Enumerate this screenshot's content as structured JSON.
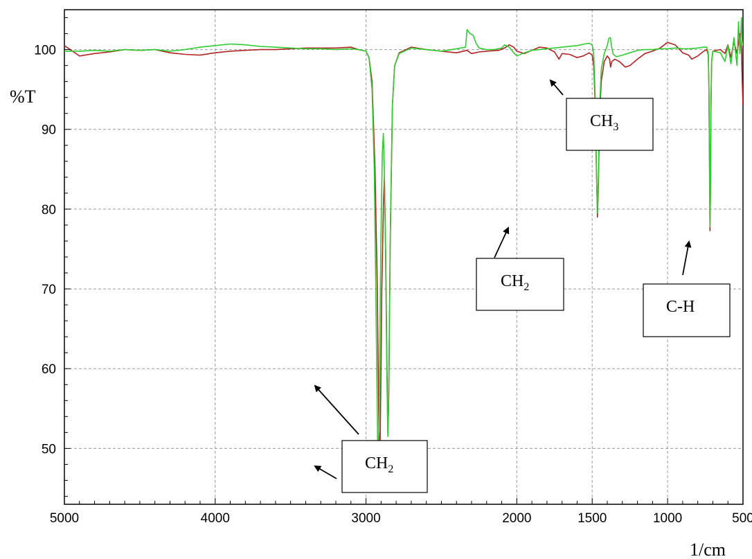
{
  "chart_data": {
    "type": "line",
    "title": "",
    "xlabel": "1/cm",
    "ylabel": "%T",
    "xlim": [
      5000,
      500
    ],
    "ylim": [
      43,
      105
    ],
    "x_reversed": true,
    "grid": true,
    "x_ticks": [
      {
        "value": 5000,
        "label": "5000"
      },
      {
        "value": 4000,
        "label": "4000"
      },
      {
        "value": 3000,
        "label": "3000"
      },
      {
        "value": 2000,
        "label": "2000"
      },
      {
        "value": 1500,
        "label": "1500"
      },
      {
        "value": 1000,
        "label": "1000"
      },
      {
        "value": 500,
        "label": "500"
      }
    ],
    "y_ticks": [
      {
        "value": 100,
        "label": "100"
      },
      {
        "value": 90,
        "label": "90"
      },
      {
        "value": 80,
        "label": "80"
      },
      {
        "value": 70,
        "label": "70"
      },
      {
        "value": 60,
        "label": "60"
      },
      {
        "value": 50,
        "label": "50"
      }
    ],
    "series": [
      {
        "color": "#b22222",
        "points": [
          [
            5000,
            100.5
          ],
          [
            4900,
            99.2
          ],
          [
            4800,
            99.5
          ],
          [
            4700,
            99.7
          ],
          [
            4600,
            100.0
          ],
          [
            4500,
            99.9
          ],
          [
            4400,
            100.0
          ],
          [
            4300,
            99.6
          ],
          [
            4200,
            99.4
          ],
          [
            4100,
            99.3
          ],
          [
            4000,
            99.6
          ],
          [
            3900,
            99.8
          ],
          [
            3800,
            99.9
          ],
          [
            3700,
            100.0
          ],
          [
            3600,
            100.0
          ],
          [
            3500,
            100.1
          ],
          [
            3400,
            100.2
          ],
          [
            3300,
            100.2
          ],
          [
            3200,
            100.2
          ],
          [
            3100,
            100.3
          ],
          [
            3050,
            100.0
          ],
          [
            3000,
            99.8
          ],
          [
            2980,
            99.0
          ],
          [
            2960,
            96.0
          ],
          [
            2940,
            85.0
          ],
          [
            2925,
            70.0
          ],
          [
            2915,
            53.0
          ],
          [
            2910,
            48.0
          ],
          [
            2905,
            52.0
          ],
          [
            2895,
            70.0
          ],
          [
            2885,
            80.0
          ],
          [
            2878,
            84.0
          ],
          [
            2870,
            75.0
          ],
          [
            2862,
            62.0
          ],
          [
            2855,
            52.0
          ],
          [
            2850,
            55.0
          ],
          [
            2840,
            75.0
          ],
          [
            2825,
            93.0
          ],
          [
            2810,
            98.0
          ],
          [
            2780,
            99.6
          ],
          [
            2700,
            100.3
          ],
          [
            2600,
            100.0
          ],
          [
            2500,
            99.8
          ],
          [
            2400,
            99.6
          ],
          [
            2330,
            99.9
          ],
          [
            2300,
            99.5
          ],
          [
            2250,
            99.7
          ],
          [
            2200,
            99.8
          ],
          [
            2120,
            99.9
          ],
          [
            2080,
            100.2
          ],
          [
            2050,
            100.6
          ],
          [
            2020,
            100.3
          ],
          [
            2000,
            99.8
          ],
          [
            1950,
            99.5
          ],
          [
            1900,
            99.9
          ],
          [
            1850,
            100.3
          ],
          [
            1800,
            100.2
          ],
          [
            1750,
            99.7
          ],
          [
            1720,
            98.8
          ],
          [
            1700,
            99.5
          ],
          [
            1650,
            99.4
          ],
          [
            1600,
            99.0
          ],
          [
            1560,
            99.2
          ],
          [
            1520,
            99.6
          ],
          [
            1500,
            99.3
          ],
          [
            1490,
            98.0
          ],
          [
            1480,
            93.0
          ],
          [
            1472,
            85.0
          ],
          [
            1465,
            79.0
          ],
          [
            1460,
            82.0
          ],
          [
            1450,
            92.0
          ],
          [
            1440,
            96.0
          ],
          [
            1420,
            98.5
          ],
          [
            1400,
            99.2
          ],
          [
            1385,
            98.8
          ],
          [
            1378,
            97.8
          ],
          [
            1370,
            98.5
          ],
          [
            1350,
            98.8
          ],
          [
            1320,
            98.5
          ],
          [
            1280,
            97.8
          ],
          [
            1250,
            98.0
          ],
          [
            1200,
            98.8
          ],
          [
            1150,
            99.5
          ],
          [
            1100,
            99.8
          ],
          [
            1050,
            100.2
          ],
          [
            1000,
            100.9
          ],
          [
            950,
            100.6
          ],
          [
            900,
            99.6
          ],
          [
            860,
            99.3
          ],
          [
            840,
            98.8
          ],
          [
            800,
            99.2
          ],
          [
            780,
            99.5
          ],
          [
            760,
            99.8
          ],
          [
            740,
            100.0
          ],
          [
            730,
            99.3
          ],
          [
            726,
            95.0
          ],
          [
            722,
            85.0
          ],
          [
            719,
            77.3
          ],
          [
            716,
            82.0
          ],
          [
            712,
            93.0
          ],
          [
            708,
            98.5
          ],
          [
            700,
            99.8
          ],
          [
            650,
            100.0
          ],
          [
            620,
            99.5
          ],
          [
            600,
            100.6
          ],
          [
            580,
            99.0
          ],
          [
            560,
            101.0
          ],
          [
            540,
            99.5
          ],
          [
            520,
            102.0
          ],
          [
            510,
            100.0
          ],
          [
            505,
            96.0
          ],
          [
            500,
            93.0
          ]
        ]
      },
      {
        "color": "#2ecc2e",
        "points": [
          [
            5000,
            99.8
          ],
          [
            4900,
            99.8
          ],
          [
            4800,
            99.9
          ],
          [
            4700,
            99.8
          ],
          [
            4600,
            100.0
          ],
          [
            4500,
            99.9
          ],
          [
            4400,
            100.0
          ],
          [
            4300,
            99.8
          ],
          [
            4200,
            100.0
          ],
          [
            4100,
            100.3
          ],
          [
            4000,
            100.5
          ],
          [
            3900,
            100.7
          ],
          [
            3800,
            100.6
          ],
          [
            3700,
            100.4
          ],
          [
            3600,
            100.3
          ],
          [
            3500,
            100.2
          ],
          [
            3400,
            100.1
          ],
          [
            3300,
            100.1
          ],
          [
            3200,
            100.0
          ],
          [
            3100,
            100.1
          ],
          [
            3050,
            100.0
          ],
          [
            3000,
            99.8
          ],
          [
            2980,
            99.0
          ],
          [
            2960,
            95.0
          ],
          [
            2945,
            85.0
          ],
          [
            2932,
            65.0
          ],
          [
            2920,
            46.2
          ],
          [
            2912,
            55.0
          ],
          [
            2902,
            75.0
          ],
          [
            2892,
            87.0
          ],
          [
            2885,
            89.5
          ],
          [
            2878,
            85.0
          ],
          [
            2870,
            74.0
          ],
          [
            2862,
            60.0
          ],
          [
            2855,
            51.5
          ],
          [
            2848,
            58.0
          ],
          [
            2838,
            78.0
          ],
          [
            2825,
            93.0
          ],
          [
            2810,
            98.0
          ],
          [
            2780,
            99.5
          ],
          [
            2700,
            100.2
          ],
          [
            2600,
            100.0
          ],
          [
            2500,
            99.8
          ],
          [
            2400,
            100.1
          ],
          [
            2340,
            100.3
          ],
          [
            2330,
            102.5
          ],
          [
            2310,
            102.0
          ],
          [
            2290,
            101.8
          ],
          [
            2270,
            100.8
          ],
          [
            2250,
            100.2
          ],
          [
            2200,
            100.0
          ],
          [
            2150,
            100.0
          ],
          [
            2100,
            100.2
          ],
          [
            2080,
            100.6
          ],
          [
            2050,
            100.3
          ],
          [
            2020,
            99.6
          ],
          [
            2000,
            99.2
          ],
          [
            1950,
            99.6
          ],
          [
            1900,
            99.9
          ],
          [
            1800,
            100.1
          ],
          [
            1700,
            100.3
          ],
          [
            1600,
            100.5
          ],
          [
            1550,
            100.7
          ],
          [
            1520,
            100.8
          ],
          [
            1500,
            100.6
          ],
          [
            1490,
            99.5
          ],
          [
            1480,
            94.0
          ],
          [
            1472,
            85.0
          ],
          [
            1465,
            79.5
          ],
          [
            1460,
            83.0
          ],
          [
            1450,
            93.0
          ],
          [
            1440,
            97.5
          ],
          [
            1420,
            99.5
          ],
          [
            1400,
            100.5
          ],
          [
            1390,
            101.4
          ],
          [
            1380,
            101.5
          ],
          [
            1370,
            100.2
          ],
          [
            1360,
            99.4
          ],
          [
            1340,
            99.1
          ],
          [
            1300,
            99.3
          ],
          [
            1250,
            99.6
          ],
          [
            1200,
            99.9
          ],
          [
            1150,
            100.0
          ],
          [
            1100,
            100.0
          ],
          [
            1050,
            100.1
          ],
          [
            1000,
            100.1
          ],
          [
            950,
            100.2
          ],
          [
            900,
            100.1
          ],
          [
            850,
            100.1
          ],
          [
            800,
            100.2
          ],
          [
            760,
            100.3
          ],
          [
            740,
            100.3
          ],
          [
            730,
            99.5
          ],
          [
            726,
            95.0
          ],
          [
            722,
            85.0
          ],
          [
            719,
            77.8
          ],
          [
            716,
            82.0
          ],
          [
            712,
            93.0
          ],
          [
            708,
            98.5
          ],
          [
            700,
            99.8
          ],
          [
            650,
            99.6
          ],
          [
            620,
            98.5
          ],
          [
            600,
            100.5
          ],
          [
            580,
            98.2
          ],
          [
            560,
            101.5
          ],
          [
            540,
            98.0
          ],
          [
            530,
            103.5
          ],
          [
            520,
            99.5
          ],
          [
            510,
            104.0
          ],
          [
            505,
            101.0
          ],
          [
            500,
            100.5
          ]
        ]
      }
    ],
    "annotations": [
      {
        "label": "CH",
        "subscript": "3"
      },
      {
        "label": "CH",
        "subscript": "2"
      },
      {
        "label": "C-H",
        "subscript": ""
      },
      {
        "label": "CH",
        "subscript": "2"
      }
    ]
  }
}
